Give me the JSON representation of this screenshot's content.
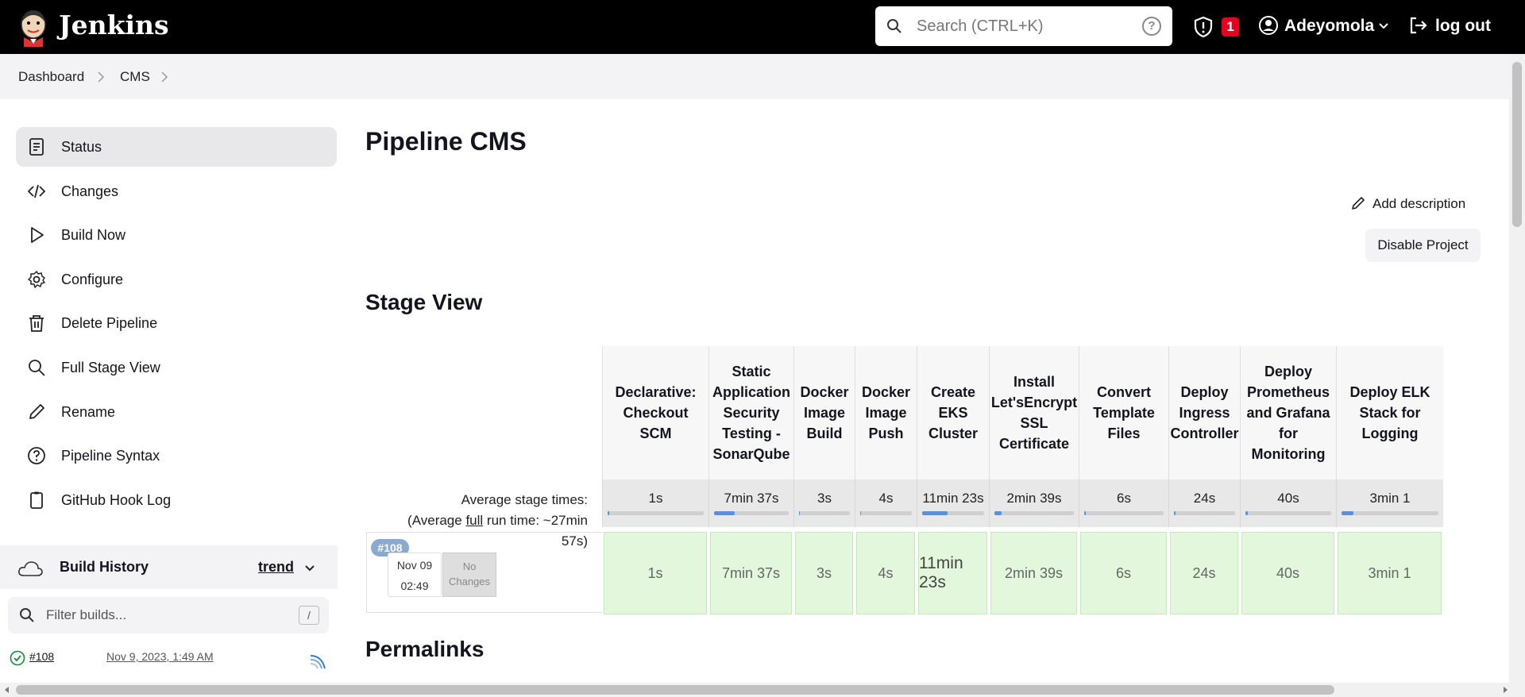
{
  "header": {
    "brand": "Jenkins",
    "search_placeholder": "Search (CTRL+K)",
    "help_label": "?",
    "security_alert_count": "1",
    "user_name": "Adeyomola",
    "logout_label": "log out"
  },
  "breadcrumb": [
    "Dashboard",
    "CMS"
  ],
  "sidebar": {
    "items": [
      {
        "label": "Status",
        "icon": "status-icon",
        "active": true
      },
      {
        "label": "Changes",
        "icon": "code-icon"
      },
      {
        "label": "Build Now",
        "icon": "play-icon"
      },
      {
        "label": "Configure",
        "icon": "gear-icon"
      },
      {
        "label": "Delete Pipeline",
        "icon": "trash-icon"
      },
      {
        "label": "Full Stage View",
        "icon": "search-icon"
      },
      {
        "label": "Rename",
        "icon": "pencil-icon"
      },
      {
        "label": "Pipeline Syntax",
        "icon": "help-circle-icon"
      },
      {
        "label": "GitHub Hook Log",
        "icon": "clipboard-icon"
      }
    ]
  },
  "build_history": {
    "title": "Build History",
    "trend_label": "trend",
    "filter_placeholder": "Filter builds...",
    "filter_shortcut": "/",
    "builds": [
      {
        "number": "#108",
        "date": "Nov 9, 2023, 1:49 AM",
        "status": "success"
      }
    ]
  },
  "main": {
    "title": "Pipeline CMS",
    "add_description_label": "Add description",
    "disable_project_label": "Disable Project",
    "stage_view_title": "Stage View",
    "permalinks_title": "Permalinks"
  },
  "stage_view": {
    "average_label_line1": "Average stage times:",
    "average_label_line2_prefix": "(Average ",
    "average_label_full": "full",
    "average_label_line2_suffix": " run time: ~27min",
    "average_label_line3": "57s)",
    "run": {
      "badge": "#108",
      "date": "Nov 09",
      "time": "02:49",
      "changes": "No Changes"
    },
    "stages": [
      {
        "name": "Declarative: Checkout SCM",
        "avg": "1s",
        "run": "1s",
        "fraction": 0.01
      },
      {
        "name": "Static Application Security Testing - SonarQube",
        "avg": "7min 37s",
        "run": "7min 37s",
        "fraction": 0.28
      },
      {
        "name": "Docker Image Build",
        "avg": "3s",
        "run": "3s",
        "fraction": 0.01
      },
      {
        "name": "Docker Image Push",
        "avg": "4s",
        "run": "4s",
        "fraction": 0.01
      },
      {
        "name": "Create EKS Cluster",
        "avg": "11min 23s",
        "run": "11min 23s",
        "fraction": 0.41
      },
      {
        "name": "Install Let'sEncrypt SSL Certificate",
        "avg": "2min 39s",
        "run": "2min 39s",
        "fraction": 0.09
      },
      {
        "name": "Convert Template Files",
        "avg": "6s",
        "run": "6s",
        "fraction": 0.01
      },
      {
        "name": "Deploy Ingress Controller",
        "avg": "24s",
        "run": "24s",
        "fraction": 0.02
      },
      {
        "name": "Deploy Prometheus and Grafana for Monitoring",
        "avg": "40s",
        "run": "40s",
        "fraction": 0.03
      },
      {
        "name": "Deploy ELK Stack for Logging",
        "avg": "3min 1",
        "run": "3min 1",
        "fraction": 0.12
      }
    ]
  },
  "colors": {
    "header_bg": "#000000",
    "alert_badge": "#e6001f",
    "success_cell": "#e3f7dc",
    "progress_fill": "#5b8fd6"
  }
}
